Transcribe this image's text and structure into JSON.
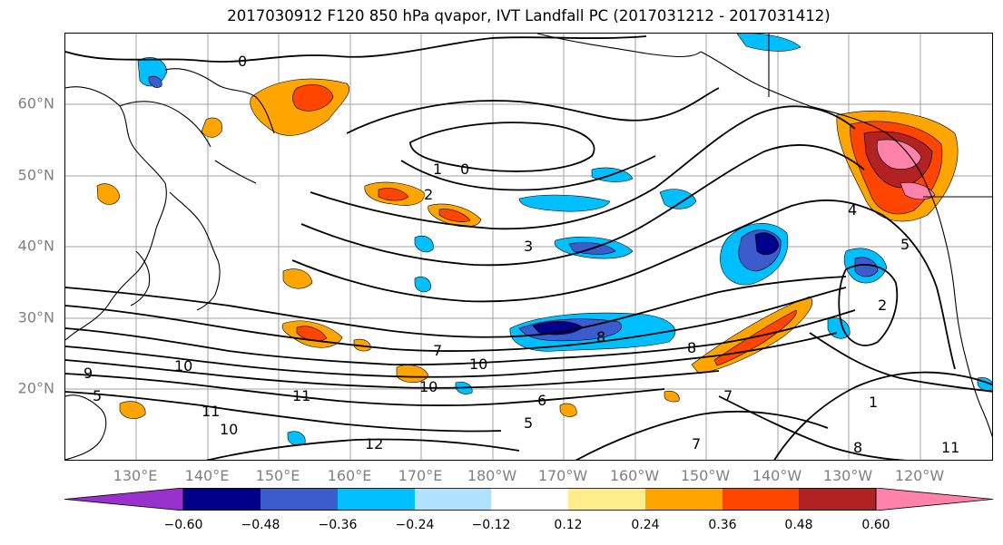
{
  "title": "2017030912 F120 850 hPa qvapor, IVT Landfall PC (2017031212 - 2017031412)",
  "latitude_labels": [
    "20°N",
    "30°N",
    "40°N",
    "50°N",
    "60°N"
  ],
  "longitude_labels": [
    "130°E",
    "140°E",
    "150°E",
    "160°E",
    "170°E",
    "180°W",
    "170°W",
    "160°W",
    "150°W",
    "140°W",
    "130°W",
    "120°W"
  ],
  "contour_labels": [
    "0",
    "1",
    "2",
    "3",
    "4",
    "5",
    "6",
    "7",
    "8",
    "9",
    "10",
    "11",
    "12"
  ],
  "colorbar": {
    "tick_labels": [
      "−0.60",
      "−0.48",
      "−0.36",
      "−0.24",
      "−0.12",
      "0.12",
      "0.24",
      "0.36",
      "0.48",
      "0.60"
    ],
    "colors": [
      "#9932cc",
      "#00008b",
      "#3a5ccc",
      "#00bfff",
      "#b0e2ff",
      "#ffffff",
      "#ffec8b",
      "#ffa500",
      "#ff4500",
      "#b22222",
      "#ff82ab"
    ]
  },
  "coastline_color": "#000000",
  "grid_color": "#a0a0a0"
}
